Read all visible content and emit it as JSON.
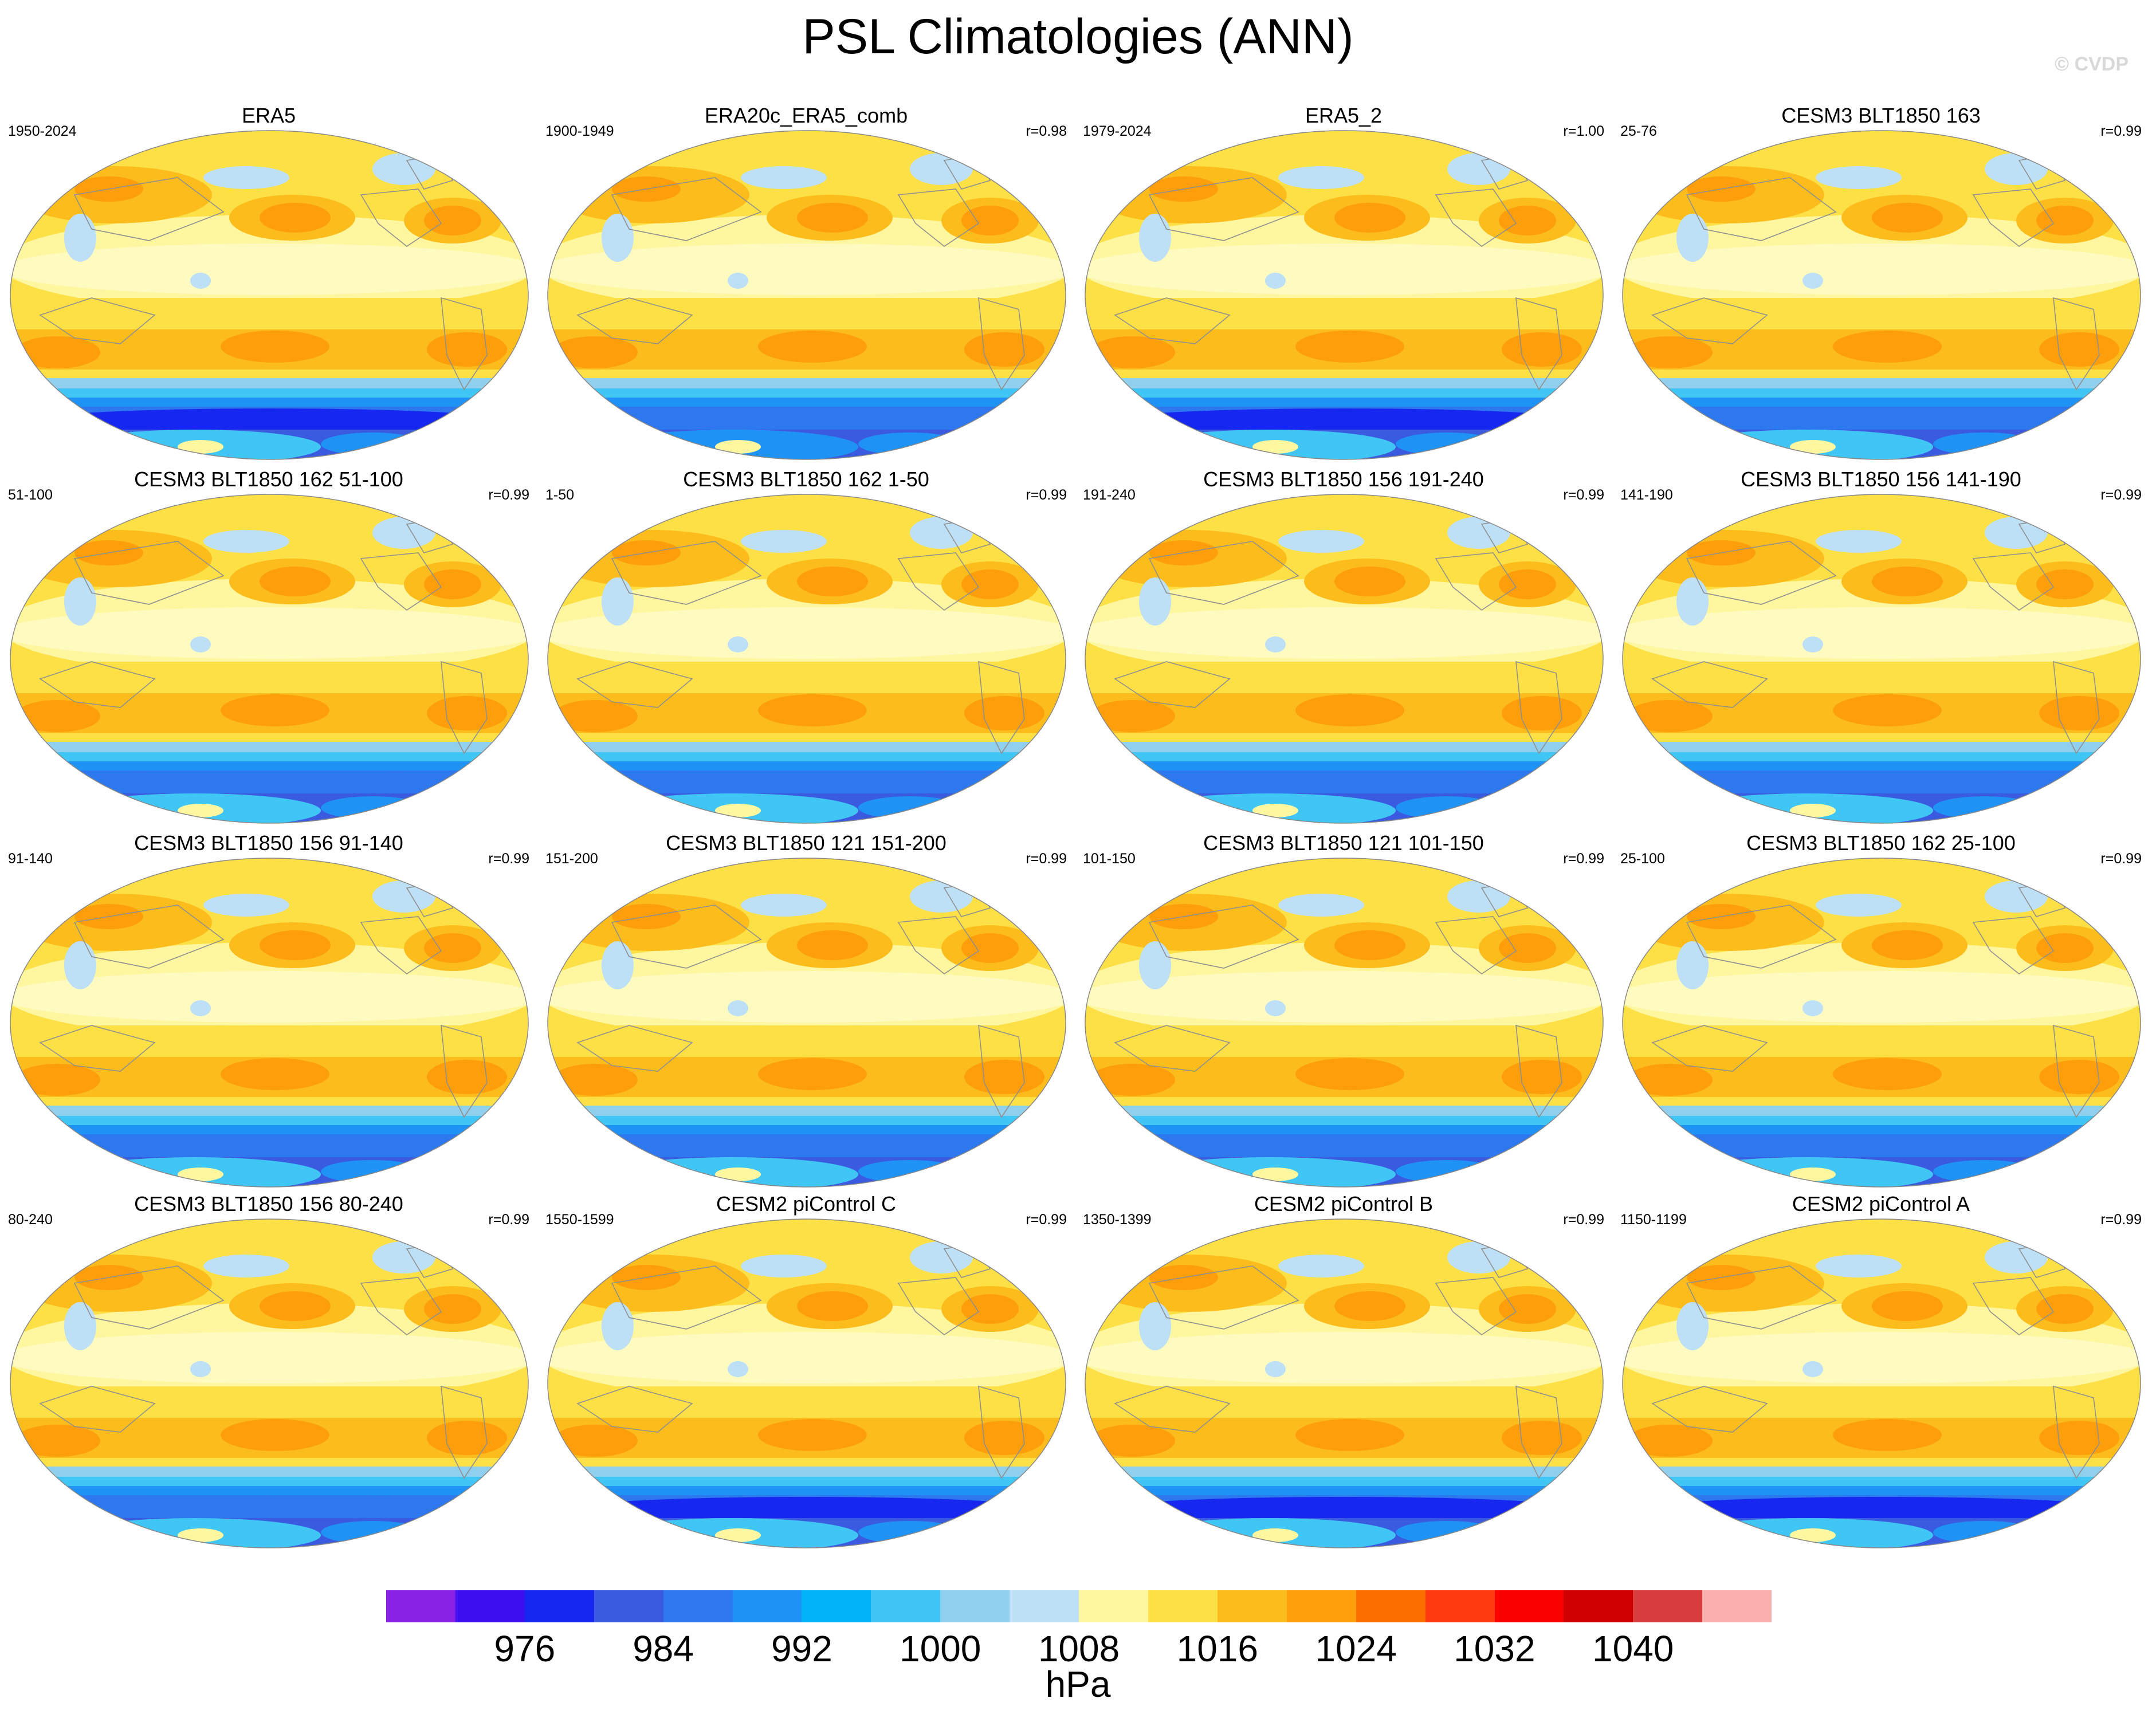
{
  "figure": {
    "title": "PSL Climatologies (ANN)",
    "watermark": "© CVDP"
  },
  "panels": [
    {
      "title": "ERA5",
      "years": "1950-2024",
      "corr": "",
      "variant": "obs"
    },
    {
      "title": "ERA20c_ERA5_comb",
      "years": "1900-1949",
      "corr": "r=0.98",
      "variant": "obs20c"
    },
    {
      "title": "ERA5_2",
      "years": "1979-2024",
      "corr": "r=1.00",
      "variant": "obs"
    },
    {
      "title": "CESM3 BLT1850 163",
      "years": "25-76",
      "corr": "r=0.99",
      "variant": "cesm3"
    },
    {
      "title": "CESM3 BLT1850 162 51-100",
      "years": "51-100",
      "corr": "r=0.99",
      "variant": "cesm3"
    },
    {
      "title": "CESM3 BLT1850 162 1-50",
      "years": "1-50",
      "corr": "r=0.99",
      "variant": "cesm3"
    },
    {
      "title": "CESM3 BLT1850 156 191-240",
      "years": "191-240",
      "corr": "r=0.99",
      "variant": "cesm3"
    },
    {
      "title": "CESM3 BLT1850 156 141-190",
      "years": "141-190",
      "corr": "r=0.99",
      "variant": "cesm3"
    },
    {
      "title": "CESM3 BLT1850 156 91-140",
      "years": "91-140",
      "corr": "r=0.99",
      "variant": "cesm3"
    },
    {
      "title": "CESM3 BLT1850 121 151-200",
      "years": "151-200",
      "corr": "r=0.99",
      "variant": "cesm3"
    },
    {
      "title": "CESM3 BLT1850 121 101-150",
      "years": "101-150",
      "corr": "r=0.99",
      "variant": "cesm3"
    },
    {
      "title": "CESM3 BLT1850 162 25-100",
      "years": "25-100",
      "corr": "r=0.99",
      "variant": "cesm3"
    },
    {
      "title": "CESM3 BLT1850 156 80-240",
      "years": "80-240",
      "corr": "r=0.99",
      "variant": "cesm3"
    },
    {
      "title": "CESM2 piControl C",
      "years": "1550-1599",
      "corr": "r=0.99",
      "variant": "cesm2"
    },
    {
      "title": "CESM2 piControl B",
      "years": "1350-1399",
      "corr": "r=0.99",
      "variant": "cesm2"
    },
    {
      "title": "CESM2 piControl A",
      "years": "1150-1199",
      "corr": "r=0.99",
      "variant": "cesm2"
    }
  ],
  "colorbar": {
    "colors": [
      "#8a22e6",
      "#3b0ff0",
      "#1628f0",
      "#3a5be0",
      "#2d78ef",
      "#1f93f5",
      "#00b4f7",
      "#40c6f5",
      "#90d0ee",
      "#bde0f6",
      "#fff6a0",
      "#fde046",
      "#fcbd1c",
      "#fd9e0a",
      "#fd6e00",
      "#ff3a10",
      "#fc0000",
      "#d00000",
      "#d93d3d",
      "#fbb0b0"
    ],
    "labels": [
      "976",
      "984",
      "992",
      "1000",
      "1008",
      "1016",
      "1024",
      "1032",
      "1040"
    ],
    "units": "hPa"
  }
}
